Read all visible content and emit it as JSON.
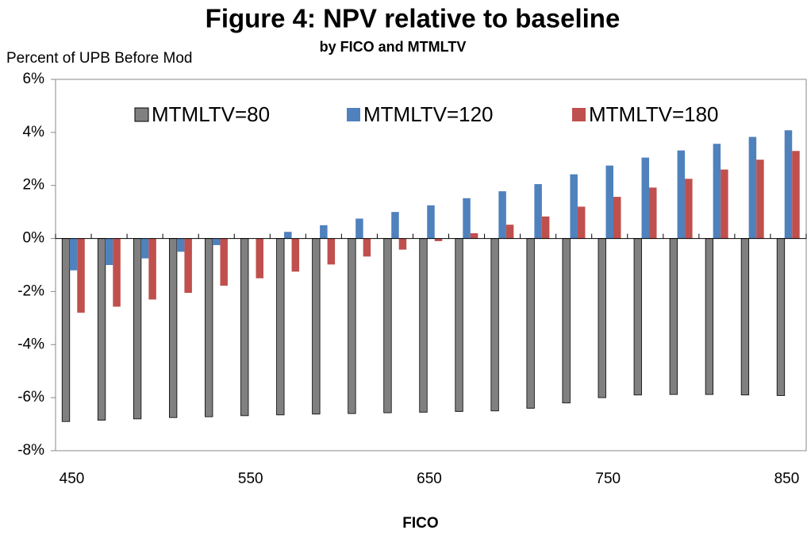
{
  "chart_data": {
    "type": "bar",
    "title": "Figure 4: NPV relative to baseline",
    "subtitle": "by FICO and MTMLTV",
    "y_label": "Percent of UPB Before Mod",
    "x_label": "FICO",
    "categories": [
      "450",
      null,
      null,
      null,
      null,
      "550",
      null,
      null,
      null,
      null,
      "650",
      null,
      null,
      null,
      null,
      "750",
      null,
      null,
      null,
      null,
      "850"
    ],
    "series": [
      {
        "name": "MTMLTV=80",
        "color": "#808080",
        "values": [
          -6.9,
          -6.85,
          -6.8,
          -6.75,
          -6.72,
          -6.68,
          -6.65,
          -6.62,
          -6.6,
          -6.57,
          -6.55,
          -6.52,
          -6.5,
          -6.4,
          -6.2,
          -6.0,
          -5.9,
          -5.88,
          -5.88,
          -5.9,
          -5.92
        ]
      },
      {
        "name": "MTMLTV=120",
        "color": "#4f81bd",
        "values": [
          -1.2,
          -1.0,
          -0.75,
          -0.5,
          -0.25,
          0.0,
          0.25,
          0.5,
          0.75,
          1.0,
          1.25,
          1.52,
          1.78,
          2.05,
          2.42,
          2.75,
          3.05,
          3.32,
          3.57,
          3.83,
          4.08
        ]
      },
      {
        "name": "MTMLTV=180",
        "color": "#c0504d",
        "values": [
          -2.8,
          -2.57,
          -2.3,
          -2.05,
          -1.78,
          -1.5,
          -1.25,
          -0.98,
          -0.68,
          -0.42,
          -0.1,
          0.2,
          0.52,
          0.83,
          1.2,
          1.57,
          1.92,
          2.25,
          2.6,
          2.97,
          3.3
        ]
      }
    ],
    "ylim": [
      -8,
      6
    ],
    "yticks": [
      {
        "value": -8,
        "label": "-8%"
      },
      {
        "value": -6,
        "label": "-6%"
      },
      {
        "value": -4,
        "label": "-4%"
      },
      {
        "value": -2,
        "label": "-2%"
      },
      {
        "value": 0,
        "label": "0%"
      },
      {
        "value": 2,
        "label": "2%"
      },
      {
        "value": 4,
        "label": "4%"
      },
      {
        "value": 6,
        "label": "6%"
      }
    ],
    "legend": "top"
  }
}
